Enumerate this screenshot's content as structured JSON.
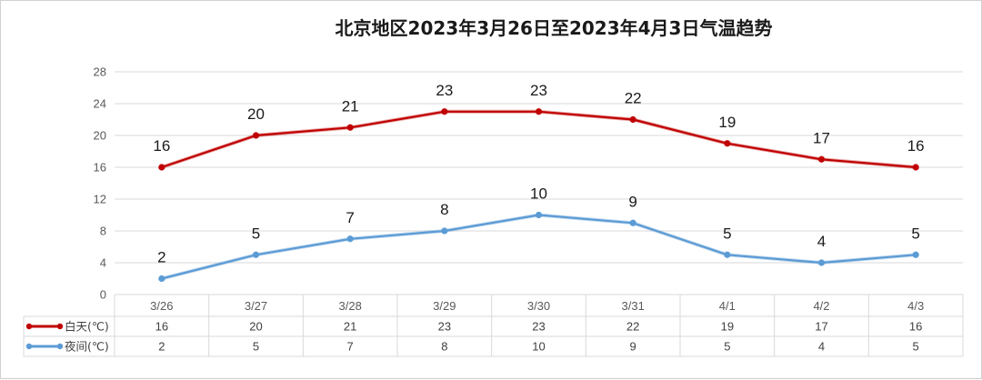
{
  "chart_data": {
    "type": "line",
    "title": "北京地区2023年3月26日至2023年4月3日气温趋势",
    "categories": [
      "3/26",
      "3/27",
      "3/28",
      "3/29",
      "3/30",
      "3/31",
      "4/1",
      "4/2",
      "4/3"
    ],
    "series": [
      {
        "name": "白天(℃)",
        "color": "#c00000",
        "values": [
          16,
          20,
          21,
          23,
          23,
          22,
          19,
          17,
          16
        ]
      },
      {
        "name": "夜间(℃)",
        "color": "#5b9bd5",
        "values": [
          2,
          5,
          7,
          8,
          10,
          9,
          5,
          4,
          5
        ]
      }
    ],
    "ylim": [
      0,
      28
    ],
    "yticks": [
      0,
      4,
      8,
      12,
      16,
      20,
      24,
      28
    ],
    "grid": true,
    "legend": "data-table",
    "xlabel": "",
    "ylabel": ""
  }
}
